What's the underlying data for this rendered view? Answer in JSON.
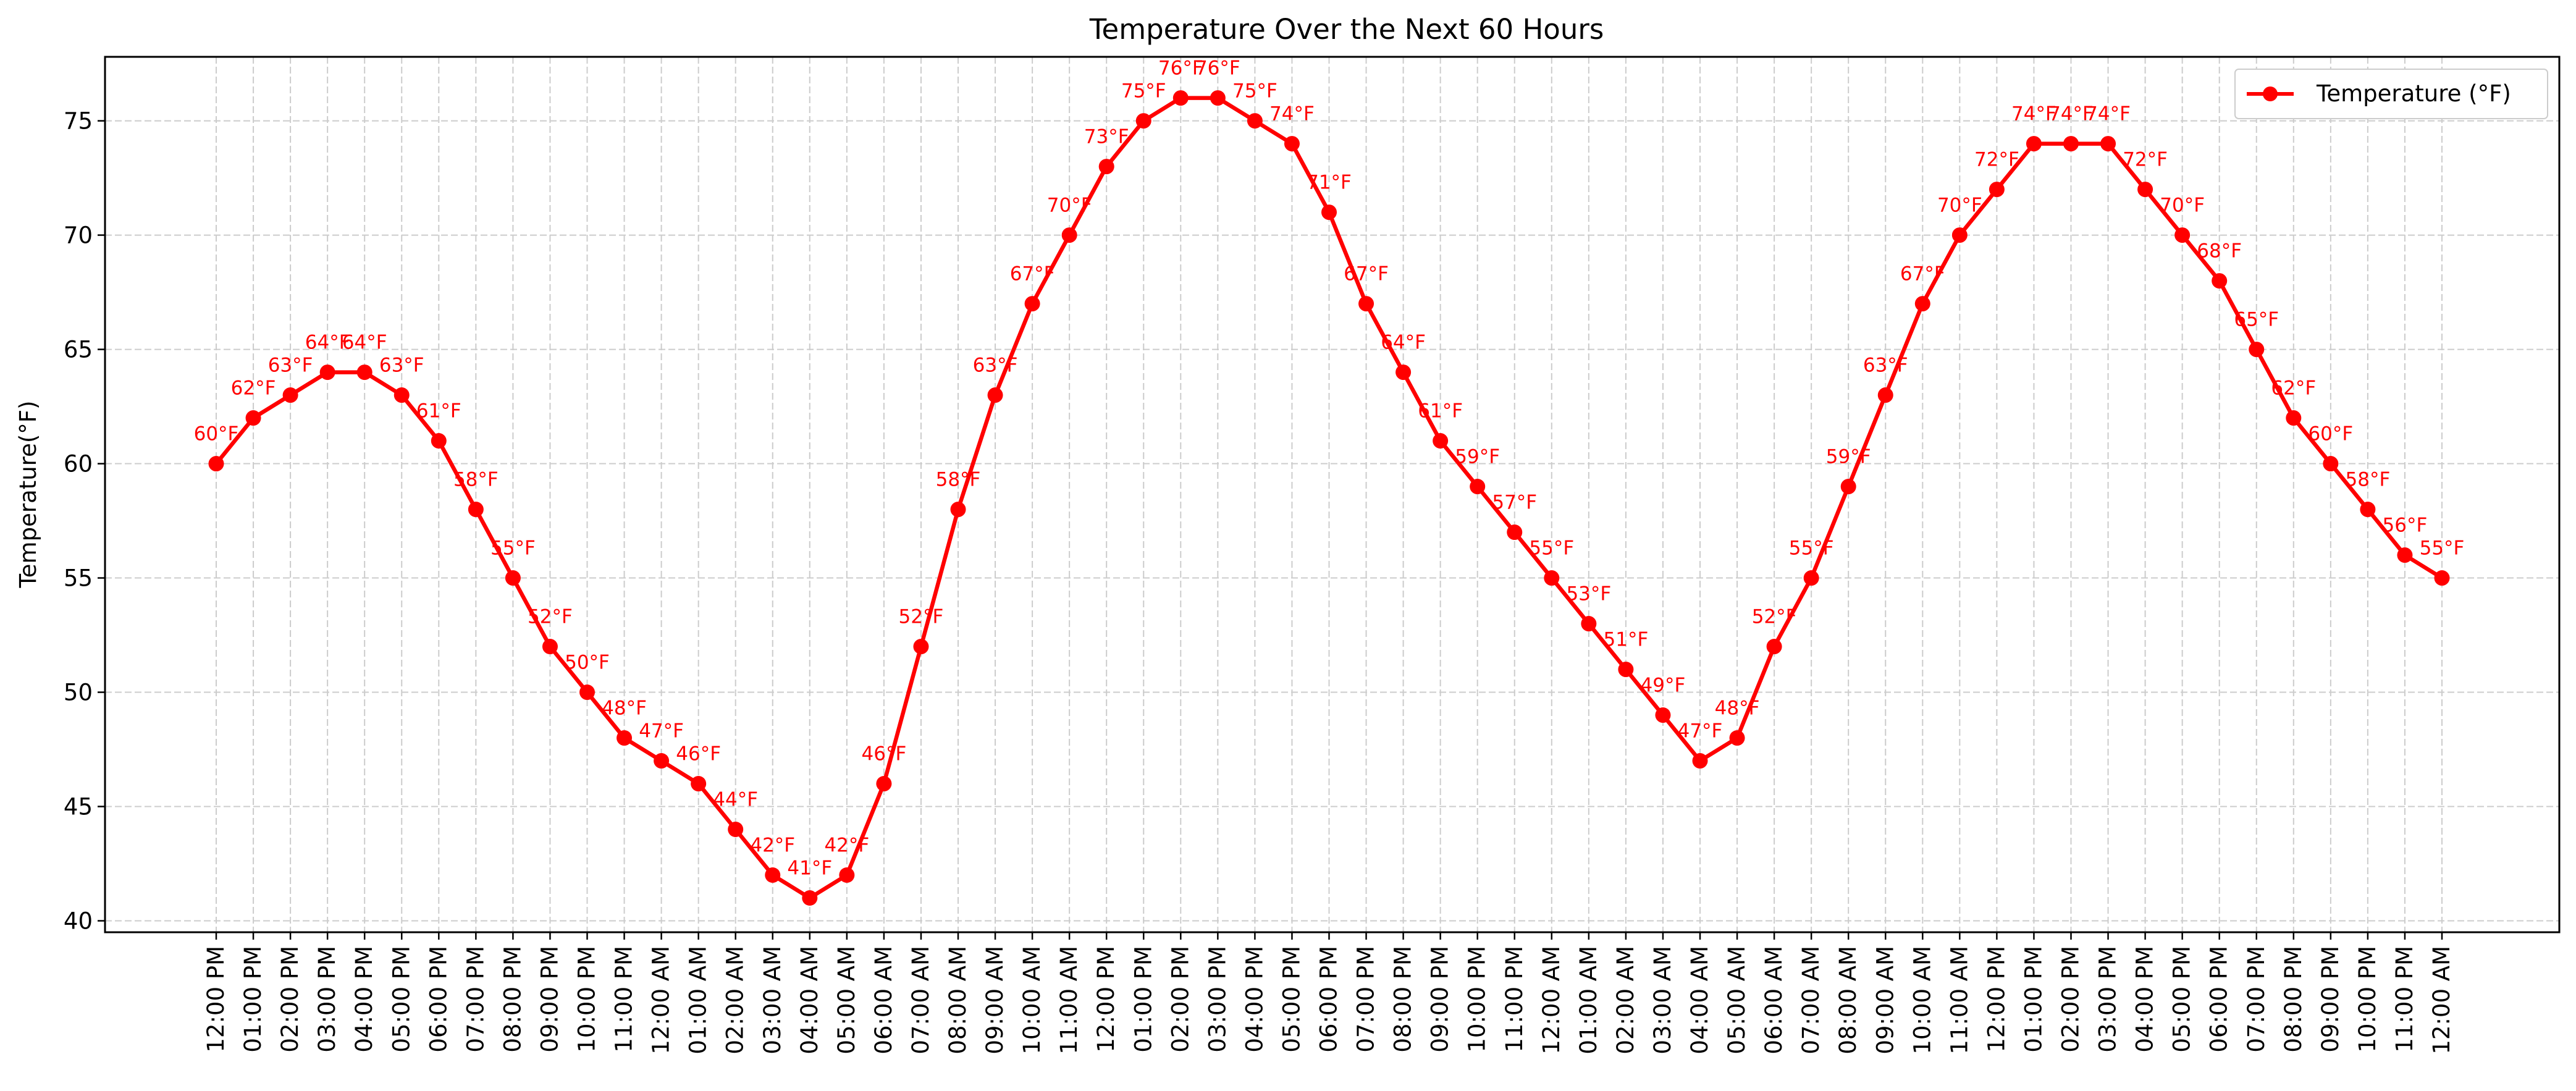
{
  "chart_data": {
    "type": "line",
    "title": "Temperature Over the Next 60 Hours",
    "xlabel": "",
    "ylabel": "Temperature(°F)",
    "ylim": [
      39.5,
      77.8
    ],
    "y_ticks": [
      40,
      45,
      50,
      55,
      60,
      65,
      70,
      75
    ],
    "grid": true,
    "legend_position": "top-right",
    "categories": [
      "12:00 PM",
      "01:00 PM",
      "02:00 PM",
      "03:00 PM",
      "04:00 PM",
      "05:00 PM",
      "06:00 PM",
      "07:00 PM",
      "08:00 PM",
      "09:00 PM",
      "10:00 PM",
      "11:00 PM",
      "12:00 AM",
      "01:00 AM",
      "02:00 AM",
      "03:00 AM",
      "04:00 AM",
      "05:00 AM",
      "06:00 AM",
      "07:00 AM",
      "08:00 AM",
      "09:00 AM",
      "10:00 AM",
      "11:00 AM",
      "12:00 PM",
      "01:00 PM",
      "02:00 PM",
      "03:00 PM",
      "04:00 PM",
      "05:00 PM",
      "06:00 PM",
      "07:00 PM",
      "08:00 PM",
      "09:00 PM",
      "10:00 PM",
      "11:00 PM",
      "12:00 AM",
      "01:00 AM",
      "02:00 AM",
      "03:00 AM",
      "04:00 AM",
      "05:00 AM",
      "06:00 AM",
      "07:00 AM",
      "08:00 AM",
      "09:00 AM",
      "10:00 AM",
      "11:00 AM",
      "12:00 PM",
      "01:00 PM",
      "02:00 PM",
      "03:00 PM",
      "04:00 PM",
      "05:00 PM",
      "06:00 PM",
      "07:00 PM",
      "08:00 PM",
      "09:00 PM",
      "10:00 PM",
      "11:00 PM",
      "12:00 AM"
    ],
    "series": [
      {
        "name": "Temperature (°F)",
        "color": "#ff0000",
        "values": [
          60,
          62,
          63,
          64,
          64,
          63,
          61,
          58,
          55,
          52,
          50,
          48,
          47,
          46,
          44,
          42,
          41,
          42,
          46,
          52,
          58,
          63,
          67,
          70,
          73,
          75,
          76,
          76,
          75,
          74,
          71,
          67,
          64,
          61,
          59,
          57,
          55,
          53,
          51,
          49,
          47,
          48,
          52,
          55,
          59,
          63,
          67,
          70,
          72,
          74,
          74,
          74,
          72,
          70,
          68,
          65,
          62,
          60,
          58,
          56,
          55
        ],
        "data_labels": [
          "60°F",
          "62°F",
          "63°F",
          "64°F",
          "64°F",
          "63°F",
          "61°F",
          "58°F",
          "55°F",
          "52°F",
          "50°F",
          "48°F",
          "47°F",
          "46°F",
          "44°F",
          "42°F",
          "41°F",
          "42°F",
          "46°F",
          "52°F",
          "58°F",
          "63°F",
          "67°F",
          "70°F",
          "73°F",
          "75°F",
          "76°F",
          "76°F",
          "75°F",
          "74°F",
          "71°F",
          "67°F",
          "64°F",
          "61°F",
          "59°F",
          "57°F",
          "55°F",
          "53°F",
          "51°F",
          "49°F",
          "47°F",
          "48°F",
          "52°F",
          "55°F",
          "59°F",
          "63°F",
          "67°F",
          "70°F",
          "72°F",
          "74°F",
          "74°F",
          "74°F",
          "72°F",
          "70°F",
          "68°F",
          "65°F",
          "62°F",
          "60°F",
          "58°F",
          "56°F",
          "55°F"
        ]
      }
    ]
  }
}
